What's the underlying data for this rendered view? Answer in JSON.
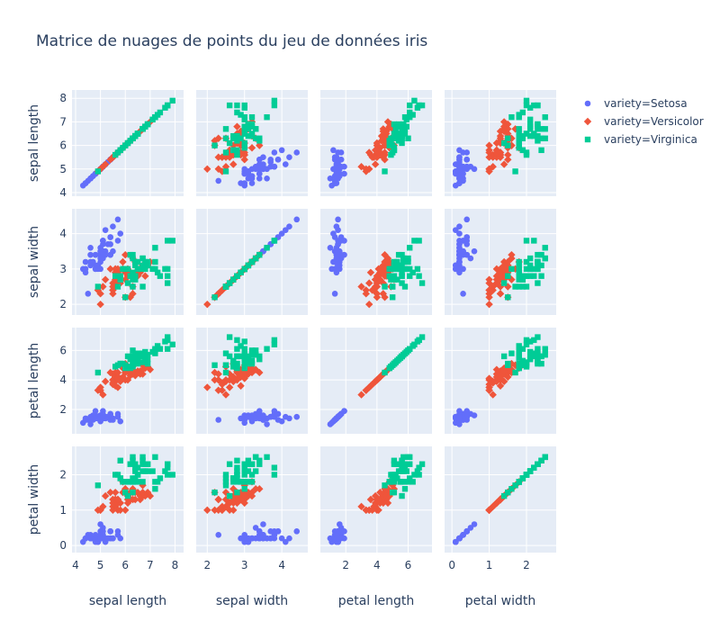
{
  "chart_data": {
    "type": "scatter",
    "title": "Matrice de nuages de points du jeu de données iris",
    "dimensions": [
      {
        "label": "sepal length",
        "range": [
          4,
          8.2
        ],
        "ticks": [
          4,
          5,
          6,
          7,
          8
        ]
      },
      {
        "label": "sepal width",
        "range": [
          1.8,
          4.6
        ],
        "ticks": [
          2,
          3,
          4
        ]
      },
      {
        "label": "petal length",
        "range": [
          0.6,
          7.3
        ],
        "ticks": [
          2,
          4,
          6
        ]
      },
      {
        "label": "petal width",
        "range": [
          -0.1,
          2.7
        ],
        "ticks": [
          0,
          1,
          2
        ]
      }
    ],
    "legend": {
      "position": "top-right"
    },
    "grid": true,
    "series": [
      {
        "name": "variety=Setosa",
        "color": "#636efa",
        "symbol": "circle",
        "points": [
          [
            5.1,
            3.5,
            1.4,
            0.2
          ],
          [
            4.9,
            3.0,
            1.4,
            0.2
          ],
          [
            4.7,
            3.2,
            1.3,
            0.2
          ],
          [
            4.6,
            3.1,
            1.5,
            0.2
          ],
          [
            5.0,
            3.6,
            1.4,
            0.2
          ],
          [
            5.4,
            3.9,
            1.7,
            0.4
          ],
          [
            4.6,
            3.4,
            1.4,
            0.3
          ],
          [
            5.0,
            3.4,
            1.5,
            0.2
          ],
          [
            4.4,
            2.9,
            1.4,
            0.2
          ],
          [
            4.9,
            3.1,
            1.5,
            0.1
          ],
          [
            5.4,
            3.7,
            1.5,
            0.2
          ],
          [
            4.8,
            3.4,
            1.6,
            0.2
          ],
          [
            4.8,
            3.0,
            1.4,
            0.1
          ],
          [
            4.3,
            3.0,
            1.1,
            0.1
          ],
          [
            5.8,
            4.0,
            1.2,
            0.2
          ],
          [
            5.7,
            4.4,
            1.5,
            0.4
          ],
          [
            5.4,
            3.9,
            1.3,
            0.4
          ],
          [
            5.1,
            3.5,
            1.4,
            0.3
          ],
          [
            5.7,
            3.8,
            1.7,
            0.3
          ],
          [
            5.1,
            3.8,
            1.5,
            0.3
          ],
          [
            5.4,
            3.4,
            1.7,
            0.2
          ],
          [
            5.1,
            3.7,
            1.5,
            0.4
          ],
          [
            4.6,
            3.6,
            1.0,
            0.2
          ],
          [
            5.1,
            3.3,
            1.7,
            0.5
          ],
          [
            4.8,
            3.4,
            1.9,
            0.2
          ],
          [
            5.0,
            3.0,
            1.6,
            0.2
          ],
          [
            5.0,
            3.4,
            1.6,
            0.4
          ],
          [
            5.2,
            3.5,
            1.5,
            0.2
          ],
          [
            5.2,
            3.4,
            1.4,
            0.2
          ],
          [
            4.7,
            3.2,
            1.6,
            0.2
          ],
          [
            4.8,
            3.1,
            1.6,
            0.2
          ],
          [
            5.4,
            3.4,
            1.5,
            0.4
          ],
          [
            5.2,
            4.1,
            1.5,
            0.1
          ],
          [
            5.5,
            4.2,
            1.4,
            0.2
          ],
          [
            4.9,
            3.1,
            1.5,
            0.1
          ],
          [
            5.0,
            3.2,
            1.2,
            0.2
          ],
          [
            5.5,
            3.5,
            1.3,
            0.2
          ],
          [
            4.9,
            3.1,
            1.5,
            0.1
          ],
          [
            4.4,
            3.0,
            1.3,
            0.2
          ],
          [
            5.1,
            3.4,
            1.5,
            0.2
          ],
          [
            5.0,
            3.5,
            1.3,
            0.3
          ],
          [
            4.5,
            2.3,
            1.3,
            0.3
          ],
          [
            4.4,
            3.2,
            1.3,
            0.2
          ],
          [
            5.0,
            3.5,
            1.6,
            0.6
          ],
          [
            5.1,
            3.8,
            1.9,
            0.4
          ],
          [
            4.8,
            3.0,
            1.4,
            0.3
          ],
          [
            5.1,
            3.8,
            1.6,
            0.2
          ],
          [
            4.6,
            3.2,
            1.4,
            0.2
          ],
          [
            5.3,
            3.7,
            1.5,
            0.2
          ],
          [
            5.0,
            3.3,
            1.4,
            0.2
          ]
        ]
      },
      {
        "name": "variety=Versicolor",
        "color": "#ef553b",
        "symbol": "diamond",
        "points": [
          [
            7.0,
            3.2,
            4.7,
            1.4
          ],
          [
            6.4,
            3.2,
            4.5,
            1.5
          ],
          [
            6.9,
            3.1,
            4.9,
            1.5
          ],
          [
            5.5,
            2.3,
            4.0,
            1.3
          ],
          [
            6.5,
            2.8,
            4.6,
            1.5
          ],
          [
            5.7,
            2.8,
            4.5,
            1.3
          ],
          [
            6.3,
            3.3,
            4.7,
            1.6
          ],
          [
            4.9,
            2.4,
            3.3,
            1.0
          ],
          [
            6.6,
            2.9,
            4.6,
            1.3
          ],
          [
            5.2,
            2.7,
            3.9,
            1.4
          ],
          [
            5.0,
            2.0,
            3.5,
            1.0
          ],
          [
            5.9,
            3.0,
            4.2,
            1.5
          ],
          [
            6.0,
            2.2,
            4.0,
            1.0
          ],
          [
            6.1,
            2.9,
            4.7,
            1.4
          ],
          [
            5.6,
            2.9,
            3.6,
            1.3
          ],
          [
            6.7,
            3.1,
            4.4,
            1.4
          ],
          [
            5.6,
            3.0,
            4.5,
            1.5
          ],
          [
            5.8,
            2.7,
            4.1,
            1.0
          ],
          [
            6.2,
            2.2,
            4.5,
            1.5
          ],
          [
            5.6,
            2.5,
            3.9,
            1.1
          ],
          [
            5.9,
            3.2,
            4.8,
            1.8
          ],
          [
            6.1,
            2.8,
            4.0,
            1.3
          ],
          [
            6.3,
            2.5,
            4.9,
            1.5
          ],
          [
            6.1,
            2.8,
            4.7,
            1.2
          ],
          [
            6.4,
            2.9,
            4.3,
            1.3
          ],
          [
            6.6,
            3.0,
            4.4,
            1.4
          ],
          [
            6.8,
            2.8,
            4.8,
            1.4
          ],
          [
            6.7,
            3.0,
            5.0,
            1.7
          ],
          [
            6.0,
            2.9,
            4.5,
            1.5
          ],
          [
            5.7,
            2.6,
            3.5,
            1.0
          ],
          [
            5.5,
            2.4,
            3.8,
            1.1
          ],
          [
            5.5,
            2.4,
            3.7,
            1.0
          ],
          [
            5.8,
            2.7,
            3.9,
            1.2
          ],
          [
            6.0,
            2.7,
            5.1,
            1.6
          ],
          [
            5.4,
            3.0,
            4.5,
            1.5
          ],
          [
            6.0,
            3.4,
            4.5,
            1.6
          ],
          [
            6.7,
            3.1,
            4.7,
            1.5
          ],
          [
            6.3,
            2.3,
            4.4,
            1.3
          ],
          [
            5.6,
            3.0,
            4.1,
            1.3
          ],
          [
            5.5,
            2.5,
            4.0,
            1.3
          ],
          [
            5.5,
            2.6,
            4.4,
            1.2
          ],
          [
            6.1,
            3.0,
            4.6,
            1.4
          ],
          [
            5.8,
            2.6,
            4.0,
            1.2
          ],
          [
            5.0,
            2.3,
            3.3,
            1.0
          ],
          [
            5.6,
            2.7,
            4.2,
            1.3
          ],
          [
            5.7,
            3.0,
            4.2,
            1.2
          ],
          [
            5.7,
            2.9,
            4.2,
            1.3
          ],
          [
            6.2,
            2.9,
            4.3,
            1.3
          ],
          [
            5.1,
            2.5,
            3.0,
            1.1
          ],
          [
            5.7,
            2.8,
            4.1,
            1.3
          ]
        ]
      },
      {
        "name": "variety=Virginica",
        "color": "#00cc96",
        "symbol": "square",
        "points": [
          [
            6.3,
            3.3,
            6.0,
            2.5
          ],
          [
            5.8,
            2.7,
            5.1,
            1.9
          ],
          [
            7.1,
            3.0,
            5.9,
            2.1
          ],
          [
            6.3,
            2.9,
            5.6,
            1.8
          ],
          [
            6.5,
            3.0,
            5.8,
            2.2
          ],
          [
            7.6,
            3.0,
            6.6,
            2.1
          ],
          [
            4.9,
            2.5,
            4.5,
            1.7
          ],
          [
            7.3,
            2.9,
            6.3,
            1.8
          ],
          [
            6.7,
            2.5,
            5.8,
            1.8
          ],
          [
            7.2,
            3.6,
            6.1,
            2.5
          ],
          [
            6.5,
            3.2,
            5.1,
            2.0
          ],
          [
            6.4,
            2.7,
            5.3,
            1.9
          ],
          [
            6.8,
            3.0,
            5.5,
            2.1
          ],
          [
            5.7,
            2.5,
            5.0,
            2.0
          ],
          [
            5.8,
            2.8,
            5.1,
            2.4
          ],
          [
            6.4,
            3.2,
            5.3,
            2.3
          ],
          [
            6.5,
            3.0,
            5.5,
            1.8
          ],
          [
            7.7,
            3.8,
            6.7,
            2.2
          ],
          [
            7.7,
            2.6,
            6.9,
            2.3
          ],
          [
            6.0,
            2.2,
            5.0,
            1.5
          ],
          [
            6.9,
            3.2,
            5.7,
            2.3
          ],
          [
            5.6,
            2.8,
            4.9,
            2.0
          ],
          [
            7.7,
            2.8,
            6.7,
            2.0
          ],
          [
            6.3,
            2.7,
            4.9,
            1.8
          ],
          [
            6.7,
            3.3,
            5.7,
            2.1
          ],
          [
            7.2,
            3.2,
            6.0,
            1.8
          ],
          [
            6.2,
            2.8,
            4.8,
            1.8
          ],
          [
            6.1,
            3.0,
            4.9,
            1.8
          ],
          [
            6.4,
            2.8,
            5.6,
            2.1
          ],
          [
            7.2,
            3.0,
            5.8,
            1.6
          ],
          [
            7.4,
            2.8,
            6.1,
            1.9
          ],
          [
            7.9,
            3.8,
            6.4,
            2.0
          ],
          [
            6.4,
            2.8,
            5.6,
            2.2
          ],
          [
            6.3,
            2.8,
            5.1,
            1.5
          ],
          [
            6.1,
            2.6,
            5.6,
            1.4
          ],
          [
            7.7,
            3.0,
            6.1,
            2.3
          ],
          [
            6.3,
            3.4,
            5.6,
            2.4
          ],
          [
            6.4,
            3.1,
            5.5,
            1.8
          ],
          [
            6.0,
            3.0,
            4.8,
            1.8
          ],
          [
            6.9,
            3.1,
            5.4,
            2.1
          ],
          [
            6.7,
            3.1,
            5.6,
            2.4
          ],
          [
            6.9,
            3.1,
            5.1,
            2.3
          ],
          [
            5.8,
            2.7,
            5.1,
            1.9
          ],
          [
            6.8,
            3.2,
            5.9,
            2.3
          ],
          [
            6.7,
            3.3,
            5.7,
            2.5
          ],
          [
            6.7,
            3.0,
            5.2,
            2.3
          ],
          [
            6.3,
            2.5,
            5.0,
            1.9
          ],
          [
            6.5,
            3.0,
            5.2,
            2.0
          ],
          [
            6.2,
            3.4,
            5.4,
            2.3
          ],
          [
            5.9,
            3.0,
            5.1,
            1.8
          ]
        ]
      }
    ]
  }
}
